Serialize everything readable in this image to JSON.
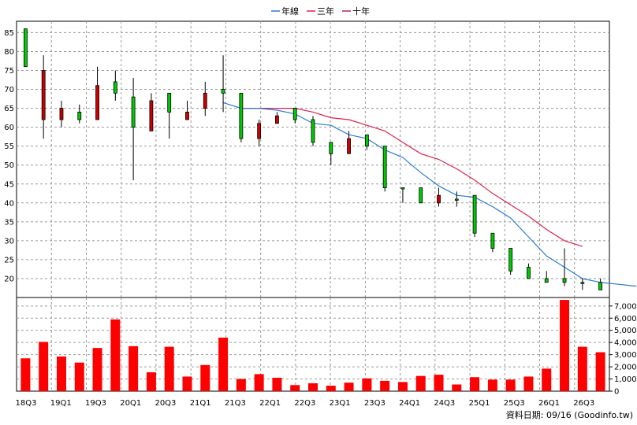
{
  "chart_data": {
    "type": "candlestick",
    "legend": [
      {
        "label": "年線",
        "color": "#2b7bd3"
      },
      {
        "label": "三年",
        "color": "#e0204a"
      },
      {
        "label": "十年",
        "color": "#b0206a"
      }
    ],
    "price_axis": {
      "ylim": [
        15,
        88
      ],
      "ticks": [
        20,
        25,
        30,
        35,
        40,
        45,
        50,
        55,
        60,
        65,
        70,
        75,
        80,
        85
      ]
    },
    "volume_axis": {
      "ylim": [
        0,
        7700
      ],
      "ticks": [
        "0",
        "1,000",
        "2,000",
        "3,000",
        "4,000",
        "5,000",
        "6,000",
        "7,000"
      ],
      "tick_values": [
        0,
        1000,
        2000,
        3000,
        4000,
        5000,
        6000,
        7000
      ]
    },
    "x_labels": [
      "18Q3",
      "19Q1",
      "19Q3",
      "20Q1",
      "20Q3",
      "21Q1",
      "21Q3",
      "22Q1",
      "22Q3",
      "23Q1",
      "23Q3",
      "24Q1",
      "24Q3",
      "25Q1",
      "25Q3",
      "26Q1",
      "26Q3"
    ],
    "candles": [
      {
        "o": 76,
        "h": 86,
        "l": 76,
        "c": 86
      },
      {
        "o": 75,
        "h": 79,
        "l": 57,
        "c": 62
      },
      {
        "o": 65,
        "h": 67,
        "l": 60,
        "c": 62
      },
      {
        "o": 62,
        "h": 66,
        "l": 61,
        "c": 64
      },
      {
        "o": 71,
        "h": 76,
        "l": 62,
        "c": 62
      },
      {
        "o": 69,
        "h": 75,
        "l": 67,
        "c": 72
      },
      {
        "o": 60,
        "h": 73,
        "l": 46,
        "c": 68
      },
      {
        "o": 67,
        "h": 69,
        "l": 59,
        "c": 59
      },
      {
        "o": 64,
        "h": 69,
        "l": 57,
        "c": 69
      },
      {
        "o": 64,
        "h": 67,
        "l": 62,
        "c": 62
      },
      {
        "o": 69,
        "h": 72,
        "l": 63,
        "c": 65
      },
      {
        "o": 69,
        "h": 79,
        "l": 64,
        "c": 70
      },
      {
        "o": 57,
        "h": 69,
        "l": 56,
        "c": 69
      },
      {
        "o": 61,
        "h": 62,
        "l": 55,
        "c": 57
      },
      {
        "o": 63,
        "h": 64,
        "l": 61,
        "c": 61
      },
      {
        "o": 62,
        "h": 65,
        "l": 61,
        "c": 65
      },
      {
        "o": 56,
        "h": 63,
        "l": 55,
        "c": 62
      },
      {
        "o": 53,
        "h": 56,
        "l": 50,
        "c": 56
      },
      {
        "o": 57,
        "h": 59,
        "l": 53,
        "c": 53
      },
      {
        "o": 55,
        "h": 58,
        "l": 54,
        "c": 58
      },
      {
        "o": 44,
        "h": 55,
        "l": 43,
        "c": 55
      },
      {
        "o": 44,
        "h": 44,
        "l": 40,
        "c": 44
      },
      {
        "o": 40,
        "h": 44,
        "l": 40,
        "c": 44
      },
      {
        "o": 42,
        "h": 44,
        "l": 39,
        "c": 40
      },
      {
        "o": 41,
        "h": 43,
        "l": 39,
        "c": 41
      },
      {
        "o": 32,
        "h": 42,
        "l": 31,
        "c": 42
      },
      {
        "o": 28,
        "h": 32,
        "l": 27,
        "c": 32
      },
      {
        "o": 22,
        "h": 28,
        "l": 21,
        "c": 28
      },
      {
        "o": 20,
        "h": 24,
        "l": 20,
        "c": 23
      },
      {
        "o": 19,
        "h": 22,
        "l": 19,
        "c": 20
      },
      {
        "o": 19,
        "h": 28,
        "l": 18,
        "c": 20
      },
      {
        "o": 19,
        "h": 20,
        "l": 17,
        "c": 19
      },
      {
        "o": 17,
        "h": 20,
        "l": 17,
        "c": 19
      }
    ],
    "volumes": [
      2700,
      4050,
      2850,
      2350,
      3550,
      5900,
      3700,
      1550,
      3650,
      1200,
      2150,
      4400,
      1000,
      1400,
      1100,
      500,
      650,
      450,
      700,
      1050,
      850,
      750,
      1250,
      1350,
      550,
      1150,
      950,
      950,
      1200,
      1850,
      7500,
      3650,
      3200
    ],
    "ma_year": {
      "start": 11,
      "values": [
        66.5,
        65,
        65,
        64.5,
        63.5,
        61,
        60.5,
        58,
        57,
        54,
        52,
        48,
        44.5,
        42,
        41.5,
        39,
        36,
        31,
        26,
        23,
        20,
        19,
        18.5,
        18
      ]
    },
    "ma_3y": {
      "start": 12,
      "values": [
        65,
        65,
        65,
        65,
        64,
        62.5,
        62,
        60.5,
        59,
        56,
        53,
        51.5,
        49,
        46,
        42.5,
        39.5,
        36.5,
        33,
        30,
        28.5
      ]
    },
    "footer": "資料日期: 09/16  (Goodinfo.tw)"
  }
}
